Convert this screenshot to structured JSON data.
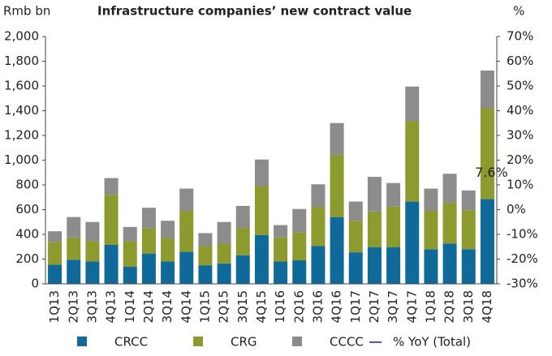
{
  "chart_data": {
    "type": "stacked_bar",
    "title": "Infrastructure companies’ new contract value",
    "y_label": "Rmb bn",
    "y2_label": "%",
    "categories": [
      "1Q13",
      "2Q13",
      "3Q13",
      "4Q13",
      "1Q14",
      "2Q14",
      "3Q14",
      "4Q14",
      "1Q15",
      "2Q15",
      "3Q15",
      "4Q15",
      "1Q16",
      "2Q16",
      "3Q16",
      "4Q16",
      "1Q17",
      "2Q17",
      "3Q17",
      "4Q17",
      "1Q18",
      "2Q18",
      "3Q18",
      "4Q18"
    ],
    "series": [
      {
        "name": "CRCC",
        "color": "#0f6a9a",
        "values": [
          155,
          195,
          180,
          315,
          140,
          245,
          180,
          260,
          150,
          165,
          230,
          395,
          180,
          190,
          305,
          540,
          255,
          295,
          295,
          665,
          280,
          325,
          280,
          685
        ]
      },
      {
        "name": "CRG",
        "color": "#8d9a2d",
        "values": [
          185,
          180,
          165,
          405,
          205,
          205,
          190,
          330,
          155,
          160,
          225,
          395,
          195,
          225,
          315,
          500,
          255,
          290,
          330,
          650,
          310,
          330,
          315,
          735
        ]
      },
      {
        "name": "CCCC",
        "color": "#8c8c8c",
        "values": [
          85,
          165,
          155,
          135,
          115,
          165,
          140,
          180,
          105,
          175,
          175,
          215,
          100,
          190,
          185,
          260,
          155,
          280,
          190,
          280,
          180,
          235,
          160,
          305
        ]
      }
    ],
    "line_legend": {
      "name": "% YoY (Total)",
      "color": "#6b4c9a"
    },
    "annotation": {
      "text": "7.6%",
      "value": 7.6
    },
    "ylim": [
      0,
      2000
    ],
    "yticks": [
      0,
      200,
      400,
      600,
      800,
      {
        "value": 1000,
        "label": "1,000"
      },
      {
        "value": 1200,
        "label": "1,200"
      },
      {
        "value": 1400,
        "label": "1,400"
      },
      {
        "value": 1600,
        "label": "1,600"
      },
      {
        "value": 1800,
        "label": "1,800"
      },
      {
        "value": 2000,
        "label": "2,000"
      }
    ],
    "y2lim": [
      -30,
      70
    ],
    "y2ticks": [
      {
        "value": -30,
        "label": "-30%"
      },
      {
        "value": -20,
        "label": "-20%"
      },
      {
        "value": -10,
        "label": "-10%"
      },
      {
        "value": 0,
        "label": "0%"
      },
      {
        "value": 10,
        "label": "10%"
      },
      {
        "value": 20,
        "label": "20%"
      },
      {
        "value": 30,
        "label": "30%"
      },
      {
        "value": 40,
        "label": "40%"
      },
      {
        "value": 50,
        "label": "50%"
      },
      {
        "value": 60,
        "label": "60%"
      },
      {
        "value": 70,
        "label": "70%"
      }
    ]
  }
}
